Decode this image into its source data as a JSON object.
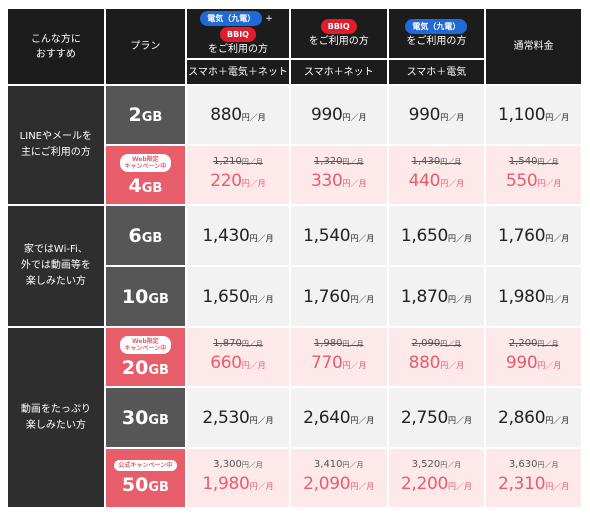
{
  "header": {
    "recommend": [
      "こんな方に",
      "おすすめ"
    ],
    "plan": "プラン",
    "col1": {
      "pill_a": "電気（九電）",
      "plus": "+",
      "pill_b": "BBIQ",
      "sub": "をご利用の方",
      "bottom": "スマホ＋電気＋ネット"
    },
    "col2": {
      "pill": "BBIQ",
      "sub": "をご利用の方",
      "bottom": "スマホ＋ネット"
    },
    "col3": {
      "pill": "電気（九電）",
      "sub": "をご利用の方",
      "bottom": "スマホ＋電気"
    },
    "col4": {
      "title": "通常料金"
    }
  },
  "groups": {
    "g1": [
      "LINEやメールを",
      "主にご利用の方"
    ],
    "g2": [
      "家ではWi-Fi、",
      "外では動画等を",
      "楽しみたい方"
    ],
    "g3": [
      "動画をたっぷり",
      "楽しみたい方"
    ]
  },
  "units": {
    "gb": "GB",
    "yen": "円／月"
  },
  "badges": {
    "web": [
      "Web限定",
      "キャンペーン中"
    ],
    "official": "公式キャンペーン中"
  },
  "rows": [
    {
      "size": "2",
      "prices": [
        "880",
        "990",
        "990",
        "1,100"
      ]
    },
    {
      "size": "4",
      "original": [
        "1,210",
        "1,320",
        "1,430",
        "1,540"
      ],
      "prices": [
        "220",
        "330",
        "440",
        "550"
      ]
    },
    {
      "size": "6",
      "prices": [
        "1,430",
        "1,540",
        "1,650",
        "1,760"
      ]
    },
    {
      "size": "10",
      "prices": [
        "1,650",
        "1,760",
        "1,870",
        "1,980"
      ]
    },
    {
      "size": "20",
      "original": [
        "1,870",
        "1,980",
        "2,090",
        "2,200"
      ],
      "prices": [
        "660",
        "770",
        "880",
        "990"
      ]
    },
    {
      "size": "30",
      "prices": [
        "2,530",
        "2,640",
        "2,750",
        "2,860"
      ]
    },
    {
      "size": "50",
      "original": [
        "3,300",
        "3,410",
        "3,520",
        "3,630"
      ],
      "prices": [
        "1,980",
        "2,090",
        "2,200",
        "2,310"
      ]
    }
  ],
  "colors": {
    "campaign": "#e85d6a",
    "campaign_bg": "#fde8ea",
    "header_bg": "#1c1c1c",
    "pill_blue": "#1f6ad6",
    "pill_red": "#e11d2b"
  }
}
